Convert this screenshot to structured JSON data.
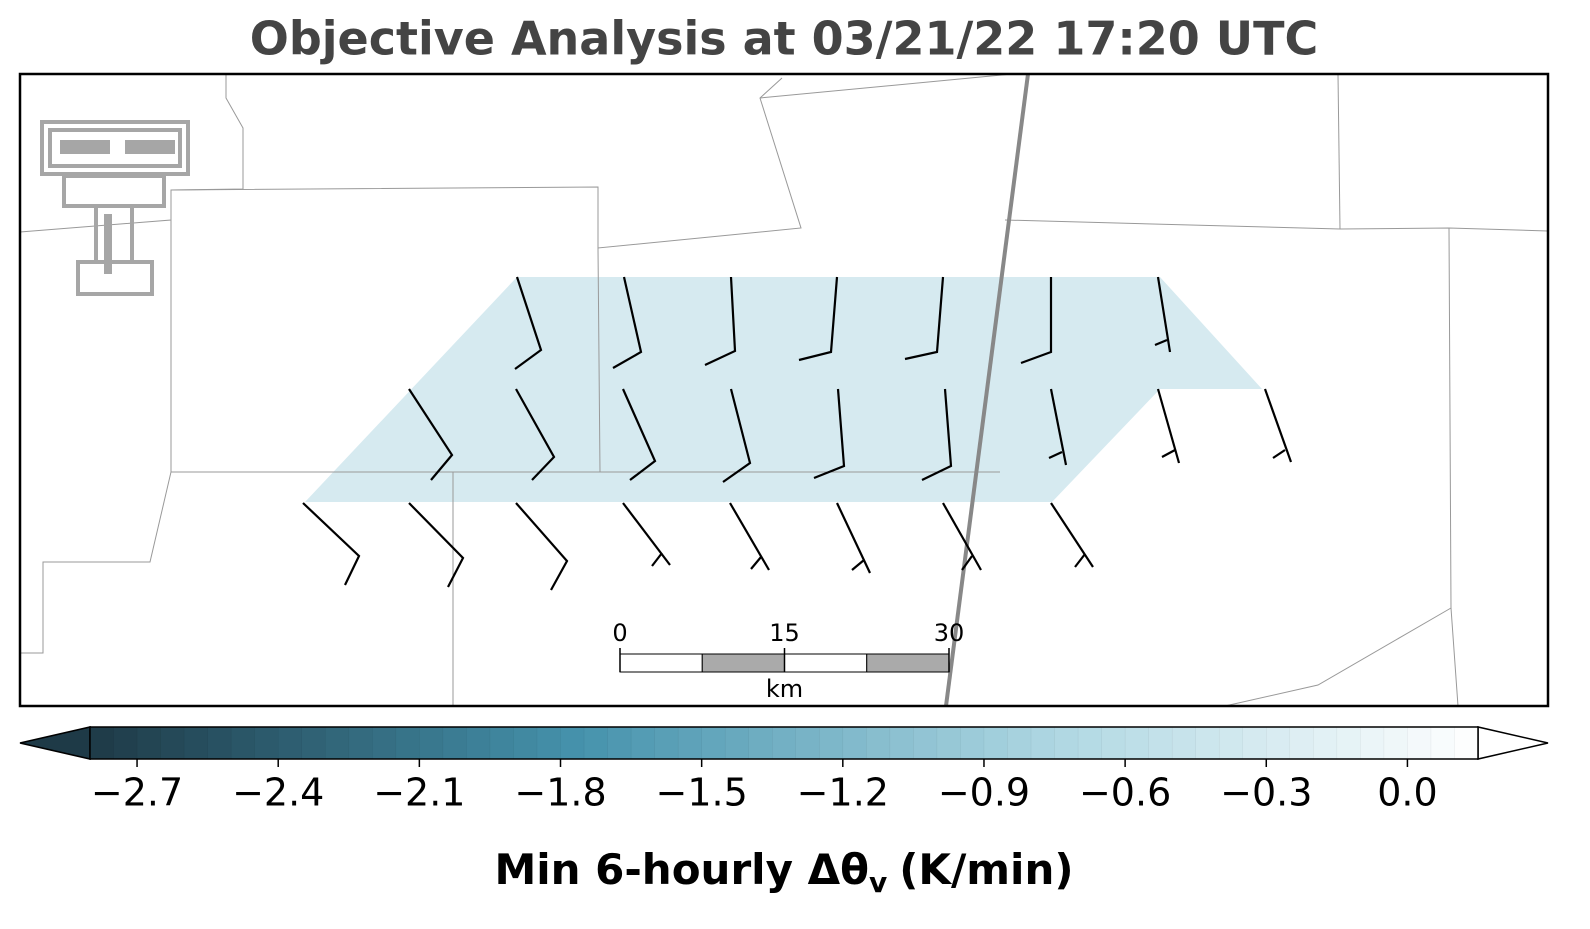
{
  "title": "Objective Analysis at 03/21/22 17:20 UTC",
  "colorbar": {
    "clim": [
      -2.8,
      0.15
    ],
    "ticks": [
      {
        "value": -2.7,
        "label": "−2.7"
      },
      {
        "value": -2.4,
        "label": "−2.4"
      },
      {
        "value": -2.1,
        "label": "−2.1"
      },
      {
        "value": -1.8,
        "label": "−1.8"
      },
      {
        "value": -1.5,
        "label": "−1.5"
      },
      {
        "value": -1.2,
        "label": "−1.2"
      },
      {
        "value": -0.9,
        "label": "−0.9"
      },
      {
        "value": -0.6,
        "label": "−0.6"
      },
      {
        "value": -0.3,
        "label": "−0.3"
      },
      {
        "value": 0,
        "label": "0.0"
      }
    ],
    "label": "Min 6-hourly Δθ",
    "label_subscript": "v",
    "label_units": "(K/min)"
  },
  "scale_bar": {
    "ticks": [
      0,
      15,
      30
    ],
    "unit": "km"
  }
}
